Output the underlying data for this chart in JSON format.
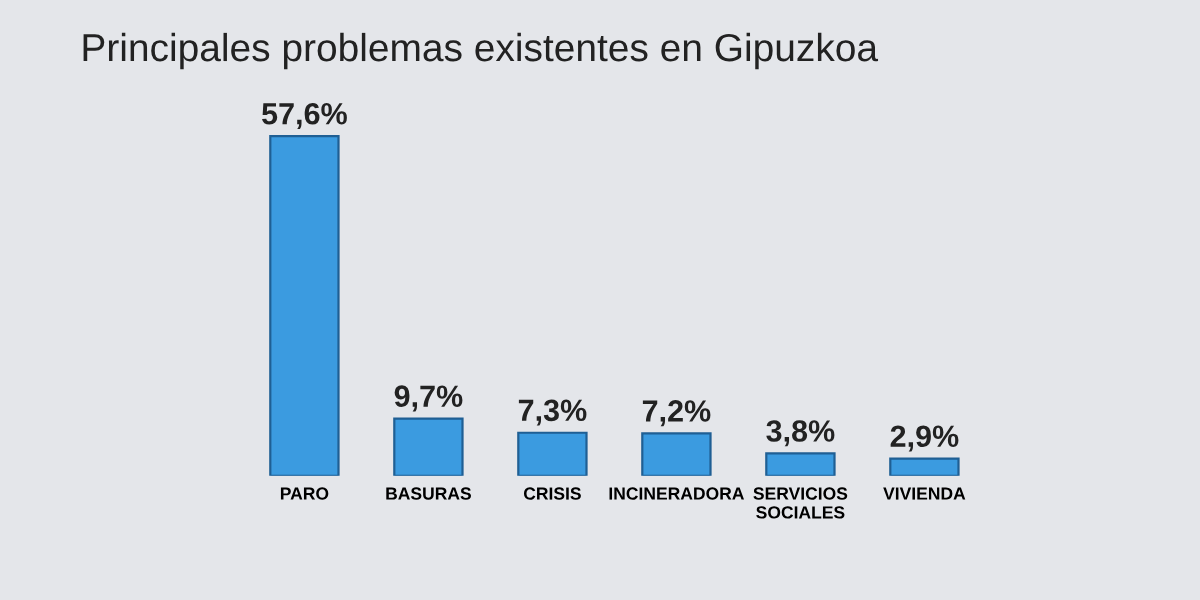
{
  "chart_data": {
    "type": "bar",
    "title": "Principales problemas existentes en Gipuzkoa",
    "categories": [
      "PARO",
      "BASURAS",
      "CRISIS",
      "INCINERADORA",
      "SERVICIOS\nSOCIALES",
      "VIVIENDA"
    ],
    "values": [
      57.6,
      9.7,
      7.3,
      7.2,
      3.8,
      2.9
    ],
    "value_labels": [
      "57,6%",
      "9,7%",
      "7,3%",
      "7,2%",
      "3,8%",
      "2,9%"
    ],
    "color": "#3b9be0"
  }
}
